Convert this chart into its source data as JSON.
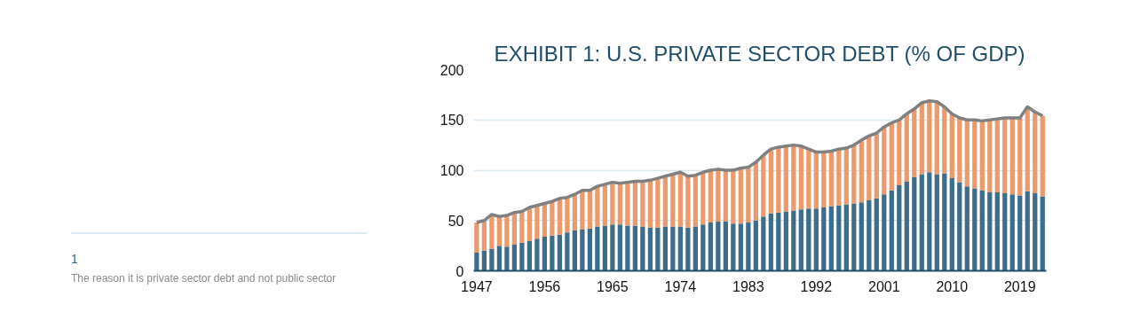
{
  "chart_data": {
    "type": "bar",
    "stacked": true,
    "title": "EXHIBIT 1: U.S. PRIVATE SECTOR DEBT (% OF GDP)",
    "x": [
      1947,
      1948,
      1949,
      1950,
      1951,
      1952,
      1953,
      1954,
      1955,
      1956,
      1957,
      1958,
      1959,
      1960,
      1961,
      1962,
      1963,
      1964,
      1965,
      1966,
      1967,
      1968,
      1969,
      1970,
      1971,
      1972,
      1973,
      1974,
      1975,
      1976,
      1977,
      1978,
      1979,
      1980,
      1981,
      1982,
      1983,
      1984,
      1985,
      1986,
      1987,
      1988,
      1989,
      1990,
      1991,
      1992,
      1993,
      1994,
      1995,
      1996,
      1997,
      1998,
      1999,
      2000,
      2001,
      2002,
      2003,
      2004,
      2005,
      2006,
      2007,
      2008,
      2009,
      2010,
      2011,
      2012,
      2013,
      2014,
      2015,
      2016,
      2017,
      2018,
      2019,
      2020,
      2021,
      2022
    ],
    "series": [
      {
        "color": "#3d6d8c",
        "values": [
          18,
          20,
          22,
          25,
          24,
          26,
          28,
          30,
          32,
          34,
          35,
          36,
          38,
          40,
          41,
          42,
          44,
          45,
          46,
          46,
          45,
          45,
          44,
          43,
          43,
          44,
          44,
          44,
          43,
          44,
          46,
          48,
          49,
          49,
          47,
          47,
          48,
          50,
          54,
          57,
          58,
          59,
          60,
          61,
          62,
          62,
          63,
          64,
          65,
          66,
          67,
          68,
          70,
          72,
          76,
          80,
          85,
          89,
          93,
          96,
          98,
          96,
          97,
          92,
          88,
          84,
          82,
          80,
          78,
          78,
          77,
          76,
          75,
          79,
          77,
          74
        ]
      },
      {
        "color": "#ec9a6c",
        "values": [
          30,
          30,
          34,
          29,
          31,
          32,
          31,
          33,
          33,
          33,
          34,
          36,
          35,
          36,
          39,
          38,
          40,
          41,
          42,
          41,
          43,
          44,
          45,
          47,
          49,
          50,
          52,
          54,
          51,
          51,
          52,
          52,
          52,
          51,
          53,
          55,
          55,
          58,
          61,
          64,
          65,
          65,
          65,
          63,
          59,
          56,
          55,
          55,
          56,
          56,
          58,
          62,
          64,
          65,
          67,
          67,
          65,
          67,
          68,
          71,
          71,
          72,
          66,
          64,
          64,
          66,
          68,
          69,
          72,
          73,
          75,
          76,
          77,
          84,
          81,
          80
        ]
      },
      {
        "type": "line",
        "color": "#808080",
        "values": [
          48,
          50,
          56,
          54,
          55,
          58,
          59,
          63,
          65,
          67,
          69,
          72,
          73,
          76,
          80,
          80,
          84,
          86,
          88,
          87,
          88,
          89,
          89,
          90,
          92,
          94,
          96,
          98,
          94,
          95,
          98,
          100,
          101,
          100,
          100,
          102,
          103,
          108,
          115,
          121,
          123,
          124,
          125,
          124,
          121,
          118,
          118,
          119,
          121,
          122,
          125,
          130,
          134,
          137,
          143,
          147,
          150,
          156,
          161,
          167,
          169,
          168,
          163,
          156,
          152,
          150,
          150,
          149,
          150,
          151,
          152,
          152,
          152,
          163,
          158,
          154
        ]
      }
    ],
    "xlim": [
      1946.6,
      2022.5
    ],
    "xticks": [
      1947,
      1956,
      1965,
      1974,
      1983,
      1992,
      2001,
      2010,
      2019
    ],
    "ylim": [
      0,
      200
    ],
    "yticks": [
      0,
      50,
      100,
      150,
      200
    ],
    "grid": "y",
    "annotations": [
      "1",
      "The reason it is private sector debt and not public sector"
    ]
  }
}
